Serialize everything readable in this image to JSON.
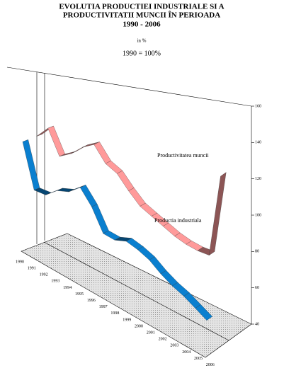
{
  "chart_data": {
    "type": "ribbon3d",
    "title": [
      "EVOLUTIA PRODUCTIEI INDUSTRIALE SI A",
      "PRODUCTIVITATII MUNCII ÎN PERIOADA",
      "1990 -  2006"
    ],
    "subtitle": "in %",
    "note": "1990 = 100%",
    "categories": [
      "1990",
      "1991",
      "1992",
      "1993",
      "1994",
      "1995",
      "1996",
      "1997",
      "1998",
      "1999",
      "2000",
      "2001",
      "2002",
      "2003",
      "2004",
      "2005",
      "2006"
    ],
    "series": [
      {
        "name": "Productia industriala",
        "color": "#0a7fcf",
        "values": [
          100,
          77,
          78,
          84,
          87,
          93,
          86,
          75,
          75,
          78,
          77,
          75,
          71,
          68,
          66,
          63,
          60
        ]
      },
      {
        "name": "Productivitatea  muncii",
        "color": "#ff9a9a",
        "values": [
          100,
          108,
          96,
          101,
          108,
          113,
          106,
          104,
          98,
          93,
          91,
          89,
          87,
          86,
          86,
          87,
          134
        ]
      }
    ],
    "ylim": [
      40,
      160
    ],
    "yticks": [
      40,
      60,
      80,
      100,
      120,
      140,
      160
    ]
  }
}
